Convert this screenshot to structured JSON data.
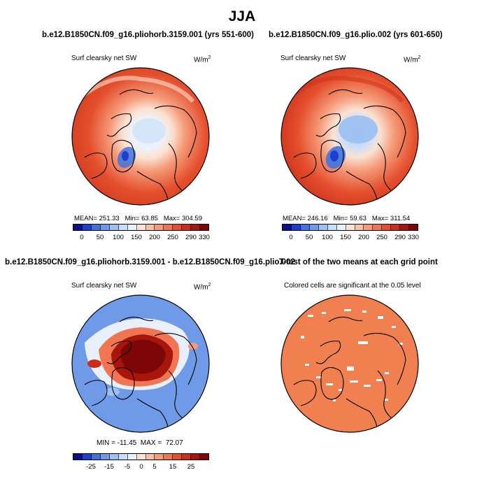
{
  "page_title": "JJA",
  "panels": [
    {
      "title": "b.e12.B1850CN.f09_g16.pliohorb.3159.001 (yrs 551-600)",
      "variable": "Surf clearsky net SW",
      "units": "W/m",
      "units_sup": "2",
      "stats": {
        "mean_label": "MEAN=",
        "mean": "251.33",
        "min_label": "Min=",
        "min": "63.85",
        "max_label": "Max=",
        "max": "304.59"
      }
    },
    {
      "title": "b.e12.B1850CN.f09_g16.plio.002 (yrs 601-650)",
      "variable": "Surf clearsky net SW",
      "units": "W/m",
      "units_sup": "2",
      "stats": {
        "mean_label": "MEAN=",
        "mean": "246.16",
        "min_label": "Min=",
        "min": "59.63",
        "max_label": "Max=",
        "max": "311.54"
      }
    },
    {
      "title": "b.e12.B1850CN.f09_g16.pliohorb.3159.001 - b.e12.B1850CN.f09_g16.plio.002",
      "variable": "Surf clearsky net SW",
      "units": "W/m",
      "units_sup": "2",
      "stats": {
        "min_label": "MIN =",
        "min": "-11.45",
        "max_label": "MAX =",
        "max": "72.07"
      }
    },
    {
      "title": "T-test of the two means at each grid point",
      "variable": "Colored cells are significant at the 0.05 level"
    }
  ],
  "colorbars": {
    "absolute": {
      "ticks": [
        "0",
        "50",
        "100",
        "150",
        "200",
        "250",
        "290",
        "330"
      ],
      "colors": [
        "#08108c",
        "#1c3fd0",
        "#3f74e0",
        "#6e9ae8",
        "#9dc1f0",
        "#c8defa",
        "#e8f0fb",
        "#fbe2d4",
        "#f8c1a4",
        "#f59a78",
        "#ef7553",
        "#e4502e",
        "#cd2d18",
        "#a8150d",
        "#7d0606"
      ]
    },
    "difference": {
      "ticks": [
        "-25",
        "-15",
        "-5",
        "0",
        "5",
        "15",
        "25"
      ],
      "colors": [
        "#08108c",
        "#1c3fd0",
        "#3f74e0",
        "#6e9ae8",
        "#9dc1f0",
        "#c8defa",
        "#e8f0fb",
        "#fbe2d4",
        "#f8c1a4",
        "#f59a78",
        "#ef7553",
        "#e4502e",
        "#cd2d18",
        "#a8150d",
        "#7d0606"
      ]
    }
  },
  "chart_data": [
    {
      "type": "heatmap",
      "title": "b.e12.B1850CN.f09_g16.pliohorb.3159.001 (yrs 551-600)",
      "variable": "Surf clearsky net SW",
      "units": "W/m^2",
      "projection": "north polar stereographic",
      "season": "JJA",
      "mean": 251.33,
      "min": 63.85,
      "max": 304.59,
      "colorbar_ticks": [
        0,
        50,
        100,
        150,
        200,
        250,
        290,
        330
      ]
    },
    {
      "type": "heatmap",
      "title": "b.e12.B1850CN.f09_g16.plio.002 (yrs 601-650)",
      "variable": "Surf clearsky net SW",
      "units": "W/m^2",
      "projection": "north polar stereographic",
      "season": "JJA",
      "mean": 246.16,
      "min": 59.63,
      "max": 311.54,
      "colorbar_ticks": [
        0,
        50,
        100,
        150,
        200,
        250,
        290,
        330
      ]
    },
    {
      "type": "heatmap",
      "title": "b.e12.B1850CN.f09_g16.pliohorb.3159.001 - b.e12.B1850CN.f09_g16.plio.002",
      "variable": "Surf clearsky net SW",
      "units": "W/m^2",
      "projection": "north polar stereographic",
      "min": -11.45,
      "max": 72.07,
      "colorbar_ticks": [
        -25,
        -15,
        -5,
        0,
        5,
        15,
        25
      ]
    },
    {
      "type": "heatmap",
      "title": "T-test of the two means at each grid point",
      "subtitle": "Colored cells are significant at the 0.05 level",
      "projection": "north polar stereographic",
      "significance_level": 0.05
    }
  ]
}
